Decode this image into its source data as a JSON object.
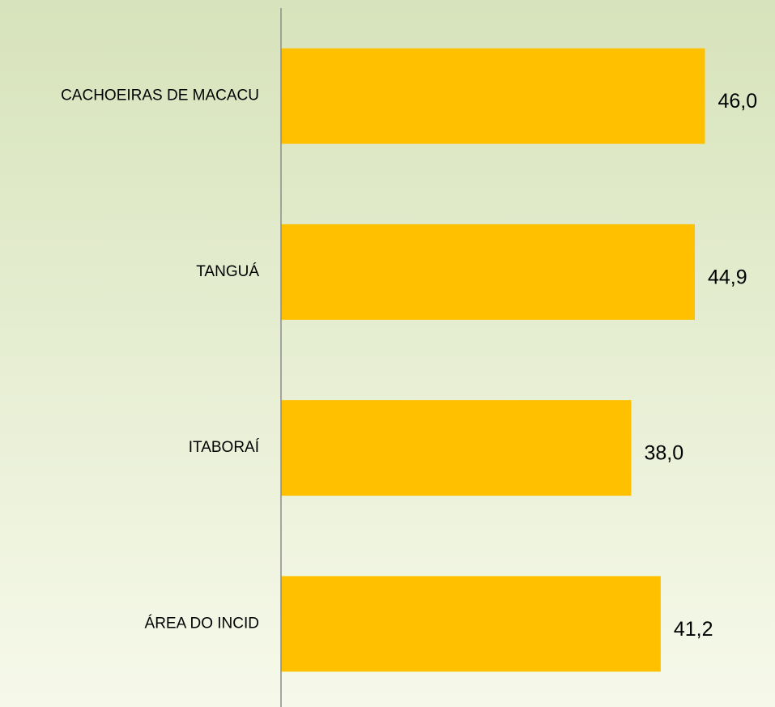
{
  "chart_data": {
    "type": "barh",
    "categories": [
      "CACHOEIRAS DE MACACU",
      "TANGUÁ",
      "ITABORAÍ",
      "ÁREA DO INCID"
    ],
    "values": [
      46.0,
      44.9,
      38.0,
      41.2
    ],
    "value_labels": [
      "46,0",
      "44,9",
      "38,0",
      "41,2"
    ],
    "color": "#ffc000",
    "xlim": [
      0,
      53.6
    ]
  }
}
